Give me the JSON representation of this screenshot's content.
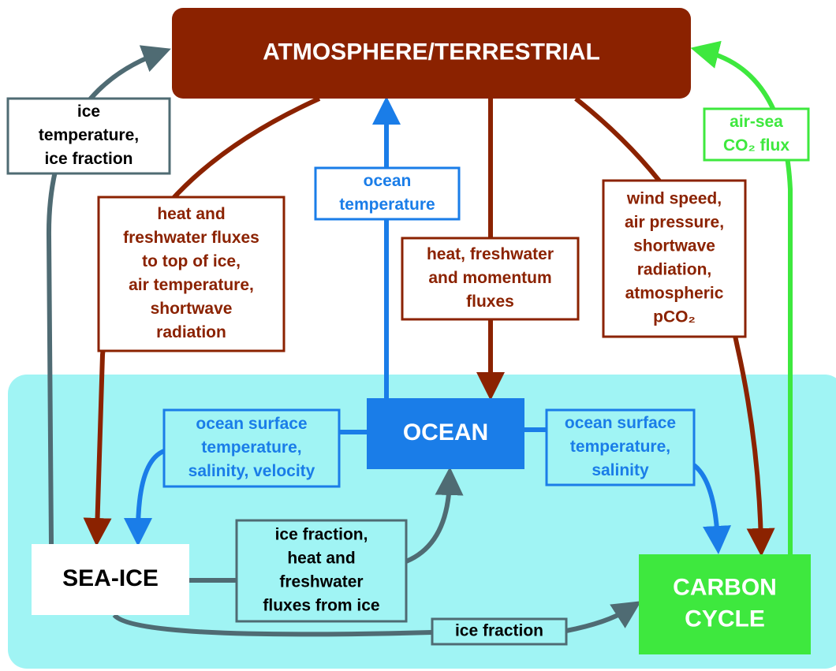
{
  "nodes": [
    {
      "lines": [
        "ATMOSPHERE/TERRESTRIAL"
      ]
    },
    {
      "lines": [
        "OCEAN"
      ]
    },
    {
      "lines": [
        "SEA-ICE"
      ]
    },
    {
      "lines": [
        "CARBON",
        "CYCLE"
      ]
    }
  ],
  "labels": [
    {
      "lines": [
        "ice",
        "temperature,",
        "ice fraction"
      ]
    },
    {
      "lines": [
        "heat and",
        "freshwater fluxes",
        "to top of ice,",
        "air temperature,",
        "shortwave",
        "radiation"
      ]
    },
    {
      "lines": [
        "ocean",
        "temperature"
      ]
    },
    {
      "lines": [
        "heat, freshwater",
        "and momentum",
        "fluxes"
      ]
    },
    {
      "lines": [
        "wind speed,",
        "air pressure,",
        "shortwave",
        "radiation,",
        "atmospheric",
        "pCO₂"
      ]
    },
    {
      "lines": [
        "air-sea",
        "CO₂ flux"
      ]
    },
    {
      "lines": [
        "ocean surface",
        "temperature,",
        "salinity, velocity"
      ]
    },
    {
      "lines": [
        "ocean surface",
        "temperature,",
        "salinity"
      ]
    },
    {
      "lines": [
        "ice fraction,",
        "heat and",
        "freshwater",
        "fluxes from ice"
      ]
    },
    {
      "lines": [
        "ice fraction"
      ]
    }
  ]
}
